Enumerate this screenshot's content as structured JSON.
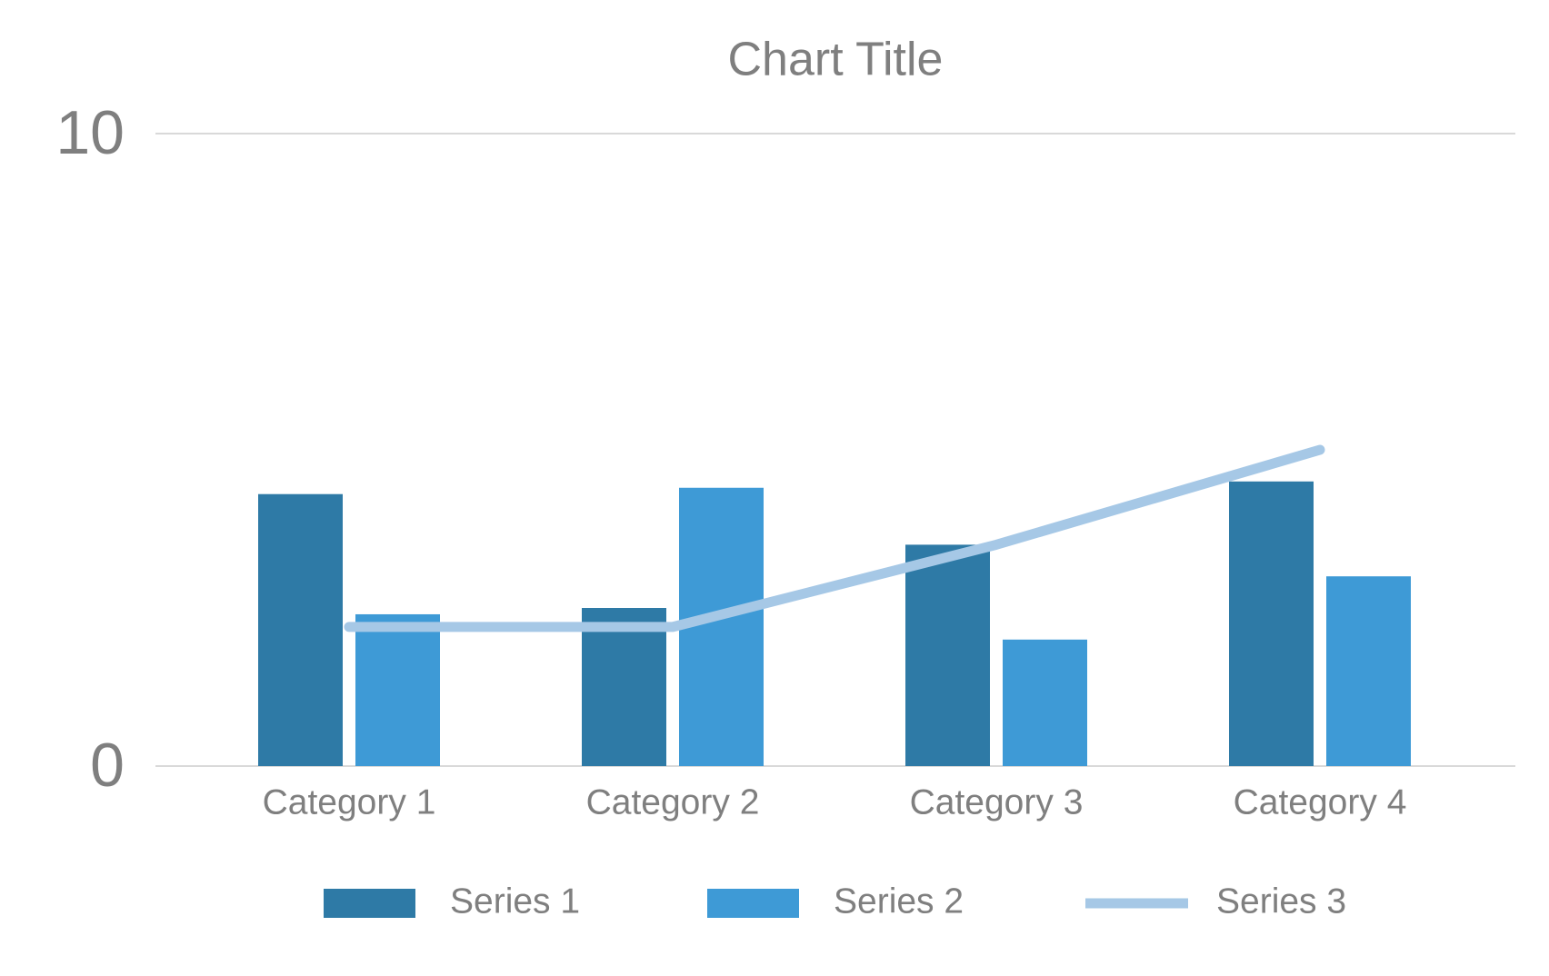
{
  "chart_data": {
    "type": "bar-line",
    "title": "Chart Title",
    "categories": [
      "Category 1",
      "Category 2",
      "Category 3",
      "Category 4"
    ],
    "series": [
      {
        "name": "Series 1",
        "type": "bar",
        "color": "#2e7aa6",
        "values": [
          4.3,
          2.5,
          3.5,
          4.5
        ]
      },
      {
        "name": "Series 2",
        "type": "bar",
        "color": "#3e9ad6",
        "values": [
          2.4,
          4.4,
          2,
          3
        ]
      },
      {
        "name": "Series 3",
        "type": "line",
        "color": "#a6c8e6",
        "values": [
          2.2,
          2.2,
          3.5,
          5
        ]
      }
    ],
    "ylim": [
      0,
      10
    ],
    "yticks": [
      0,
      10
    ],
    "grid": true,
    "legend": "bottom"
  }
}
